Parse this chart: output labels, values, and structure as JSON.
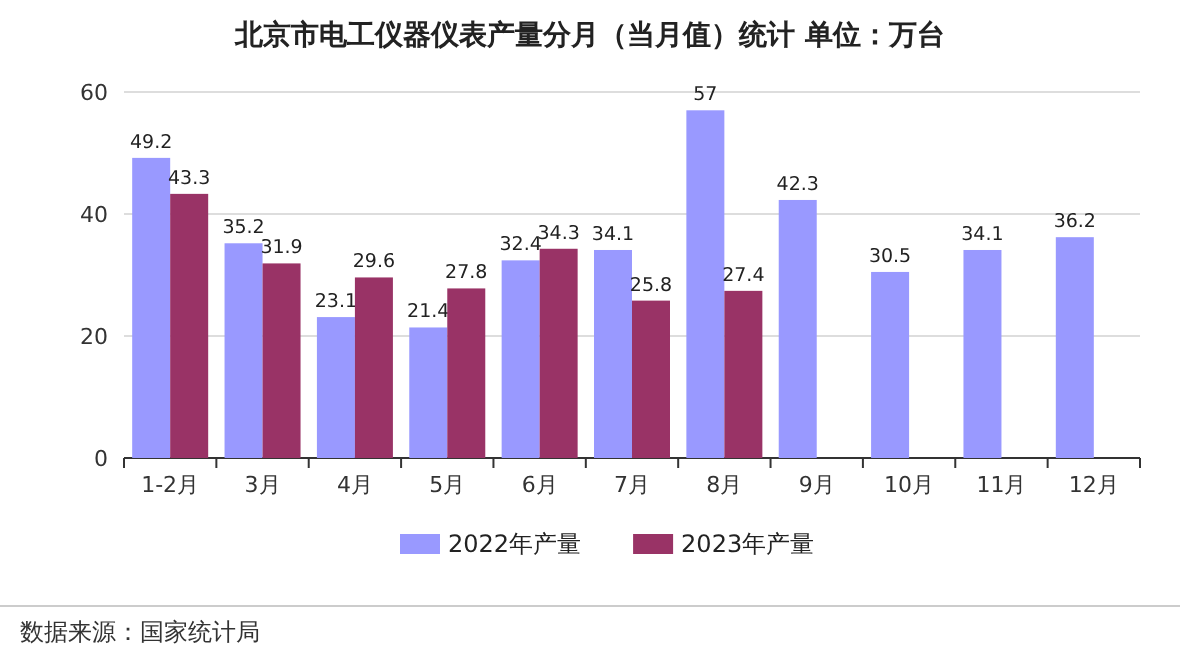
{
  "chart_data": {
    "type": "bar",
    "title": "北京市电工仪器仪表产量分月（当月值）统计 单位：万台",
    "categories": [
      "1-2月",
      "3月",
      "4月",
      "5月",
      "6月",
      "7月",
      "8月",
      "9月",
      "10月",
      "11月",
      "12月"
    ],
    "series": [
      {
        "name": "2022年产量",
        "color": "#9999ff",
        "values": [
          49.2,
          35.2,
          23.1,
          21.4,
          32.4,
          34.1,
          57,
          42.3,
          30.5,
          34.1,
          36.2
        ]
      },
      {
        "name": "2023年产量",
        "color": "#993366",
        "values": [
          43.3,
          31.9,
          29.6,
          27.8,
          34.3,
          25.8,
          27.4,
          null,
          null,
          null,
          null
        ]
      }
    ],
    "ylim": [
      0,
      60
    ],
    "yticks": [
      0,
      20,
      40,
      60
    ],
    "grid": "y",
    "legend": "bottom",
    "data_labels": true,
    "annotations": [
      "数据来源：国家统计局"
    ]
  }
}
